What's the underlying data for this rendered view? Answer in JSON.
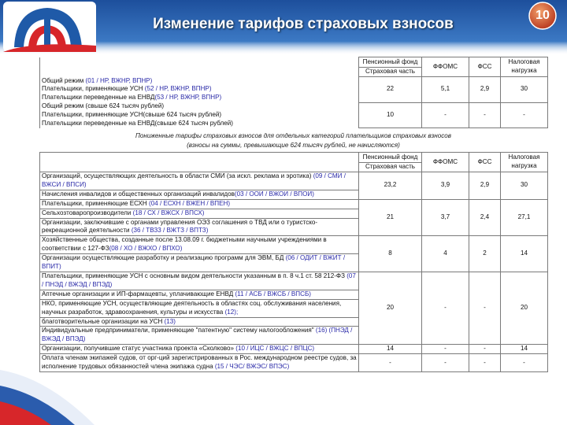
{
  "header": {
    "title": "Изменение тарифов страховых взносов",
    "slide_number": "10"
  },
  "table1": {
    "head": {
      "pf": [
        "Пенсионный фонд",
        "Страховая часть"
      ],
      "other": [
        "ФФОМС",
        "ФСС",
        "Налоговая нагрузка"
      ]
    },
    "groups": [
      {
        "rows": [
          {
            "text": "Общий режим ",
            "code": "(01 / НР, ВЖНР, ВПНР)"
          },
          {
            "text": "Плательщики, применяющие УСН ",
            "code": "(52 / НР, ВЖНР, ВПНР)"
          },
          {
            "text": "Плательщики переведенные на ЕНВД",
            "code": "(53 / НР, ВЖНР, ВПНР)"
          }
        ],
        "values": [
          "22",
          "5,1",
          "2,9",
          "30"
        ]
      },
      {
        "rows": [
          {
            "text": "Общий режим (свыше 624 тысяч рублей)"
          },
          {
            "text": "Плательщики, применяющие УСН(свыше 624 тысяч рублей)"
          },
          {
            "text": "Плательщики переведенные на ЕНВД(свыше 624 тысяч рублей)"
          }
        ],
        "values": [
          "10",
          "-",
          "-",
          "-"
        ]
      }
    ]
  },
  "caption": [
    "Пониженные тарифы страховых взносов для отдельных категорий плательщиков страховых взносов",
    "(взносы на суммы, превышающие 624 тысяч рублей, не начисляются)"
  ],
  "table2": {
    "head": {
      "pf": [
        "Пенсионный фонд",
        "Страховая часть"
      ],
      "other": [
        "ФФОМС",
        "ФСС",
        "Налоговая нагрузка"
      ]
    },
    "groups": [
      {
        "rows": [
          {
            "text": "Организаций, осуществляющих деятельность в области СМИ (за искл. реклама и эротика) ",
            "code": "(09 / СМИ / ВЖСИ / ВПСИ)"
          },
          {
            "text": "Начисления инвалидов и общественных организаций инвалидов",
            "code": "(03 / ООИ / ВЖОИ / ВПОИ)"
          }
        ],
        "values": [
          "23,2",
          "3,9",
          "2,9",
          "30"
        ]
      },
      {
        "rows": [
          {
            "text": "Плательщики, применяющие ЕСХН ",
            "code": "(04 / ЕСХН / ВЖЕН / ВПЕН)"
          },
          {
            "text": "Сельхозтоваропроизводители ",
            "code": "(18 / СХ / ВЖСХ / ВПСХ)"
          },
          {
            "text": "Организации, заключившие с органами управления ОЭЗ соглашения о ТВД или о туристско-рекреационной деятельности ",
            "code": "(36 / ТВЗ3 / ВЖТЗ / ВПТЗ)"
          }
        ],
        "values": [
          "21",
          "3,7",
          "2,4",
          "27,1"
        ]
      },
      {
        "rows": [
          {
            "text": "Хозяйственные общества, созданные после 13.08.09 г. бюджетными научными учреждениями в соответствии с 127-ФЗ",
            "code": "(08 / ХО / ВЖХО / ВПХО)"
          },
          {
            "text": "Организации осуществляющие разработку и реализацию программ для ЭВМ, БД ",
            "code": "(06 / ОДИТ / ВЖИТ / ВПИТ)"
          }
        ],
        "values": [
          "8",
          "4",
          "2",
          "14"
        ]
      },
      {
        "rows": [
          {
            "text": "Плательщики, применяющие УСН с основным видом деятельности указанным в п. 8 ч.1 ст. 58 212-ФЗ ",
            "code": "(07 / ПНЭД / ВЖЭД / ВПЭД)"
          },
          {
            "text": "Аптечные организации и ИП-фармацевты, уплачивающие ЕНВД ",
            "code": "(11 / АСБ / ВЖСБ / ВПСБ)"
          },
          {
            "text": "НКО, применяющие УСН, осуществляющие деятельность в областях соц. обслуживания населения, научных разработок, здравоохранения, культуры и искусства ",
            "code": "(12);"
          },
          {
            "text": "благотворительные организации на УСН ",
            "code": "(13)"
          },
          {
            "text": "Индивидуальные предприниматели, применяющие \"патентную\" систему налогообложения\" ",
            "code": "(16) (ПНЭД / ВЖЭД / ВПЭД)"
          }
        ],
        "values": [
          "20",
          "-",
          "-",
          "20"
        ]
      },
      {
        "rows": [
          {
            "text": "Организации, получившие статус участника проекта «Сколково» ",
            "code": "(10 / ИЦС / ВЖЦС / ВПЦС)"
          }
        ],
        "values": [
          "14",
          "-",
          "-",
          "14"
        ]
      },
      {
        "rows": [
          {
            "text": "Оплата членам экипажей судов, от орг-ций зарегистрированных в Рос. международном реестре судов, за исполнение трудовых обязанностей члена экипажа судна ",
            "code": "(15 / ЧЭС/ ВЖЭС/ ВПЭС)"
          }
        ],
        "values": [
          "-",
          "-",
          "-",
          "-"
        ]
      }
    ]
  }
}
